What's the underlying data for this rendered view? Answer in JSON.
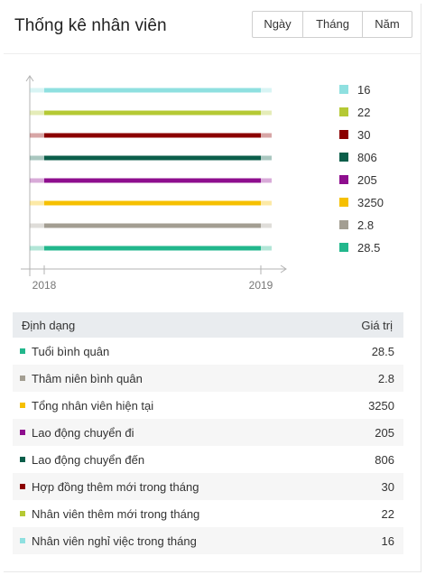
{
  "header": {
    "title": "Thống kê nhân viên",
    "tabs": [
      {
        "label": "Ngày"
      },
      {
        "label": "Tháng"
      },
      {
        "label": "Năm"
      }
    ]
  },
  "chart_data": {
    "type": "line",
    "x": [
      "2018",
      "2019"
    ],
    "grid": false,
    "legend_position": "right",
    "series": [
      {
        "name": "16",
        "values": [
          16,
          16
        ],
        "color": "#8fe0e0"
      },
      {
        "name": "22",
        "values": [
          22,
          22
        ],
        "color": "#b5c934"
      },
      {
        "name": "30",
        "values": [
          30,
          30
        ],
        "color": "#8b0000"
      },
      {
        "name": "806",
        "values": [
          806,
          806
        ],
        "color": "#0b5e4a"
      },
      {
        "name": "205",
        "values": [
          205,
          205
        ],
        "color": "#8e0e8e"
      },
      {
        "name": "3250",
        "values": [
          3250,
          3250
        ],
        "color": "#f6c000"
      },
      {
        "name": "2.8",
        "values": [
          2.8,
          2.8
        ],
        "color": "#a39e92"
      },
      {
        "name": "28.5",
        "values": [
          28.5,
          28.5
        ],
        "color": "#22b78c"
      }
    ]
  },
  "table": {
    "headers": {
      "name": "Định dạng",
      "value": "Giá trị"
    },
    "rows": [
      {
        "label": "Tuổi bình quân",
        "value": "28.5",
        "color": "#22b78c"
      },
      {
        "label": "Thâm niên bình quân",
        "value": "2.8",
        "color": "#a39e92"
      },
      {
        "label": "Tổng nhân viên hiện tại",
        "value": "3250",
        "color": "#f6c000"
      },
      {
        "label": "Lao động chuyển đi",
        "value": "205",
        "color": "#8e0e8e"
      },
      {
        "label": "Lao động chuyển đến",
        "value": "806",
        "color": "#0b5e4a"
      },
      {
        "label": "Hợp đồng thêm mới trong tháng",
        "value": "30",
        "color": "#8b0000"
      },
      {
        "label": "Nhân viên thêm mới trong tháng",
        "value": "22",
        "color": "#b5c934"
      },
      {
        "label": "Nhân viên nghỉ việc trong tháng",
        "value": "16",
        "color": "#8fe0e0"
      }
    ]
  }
}
